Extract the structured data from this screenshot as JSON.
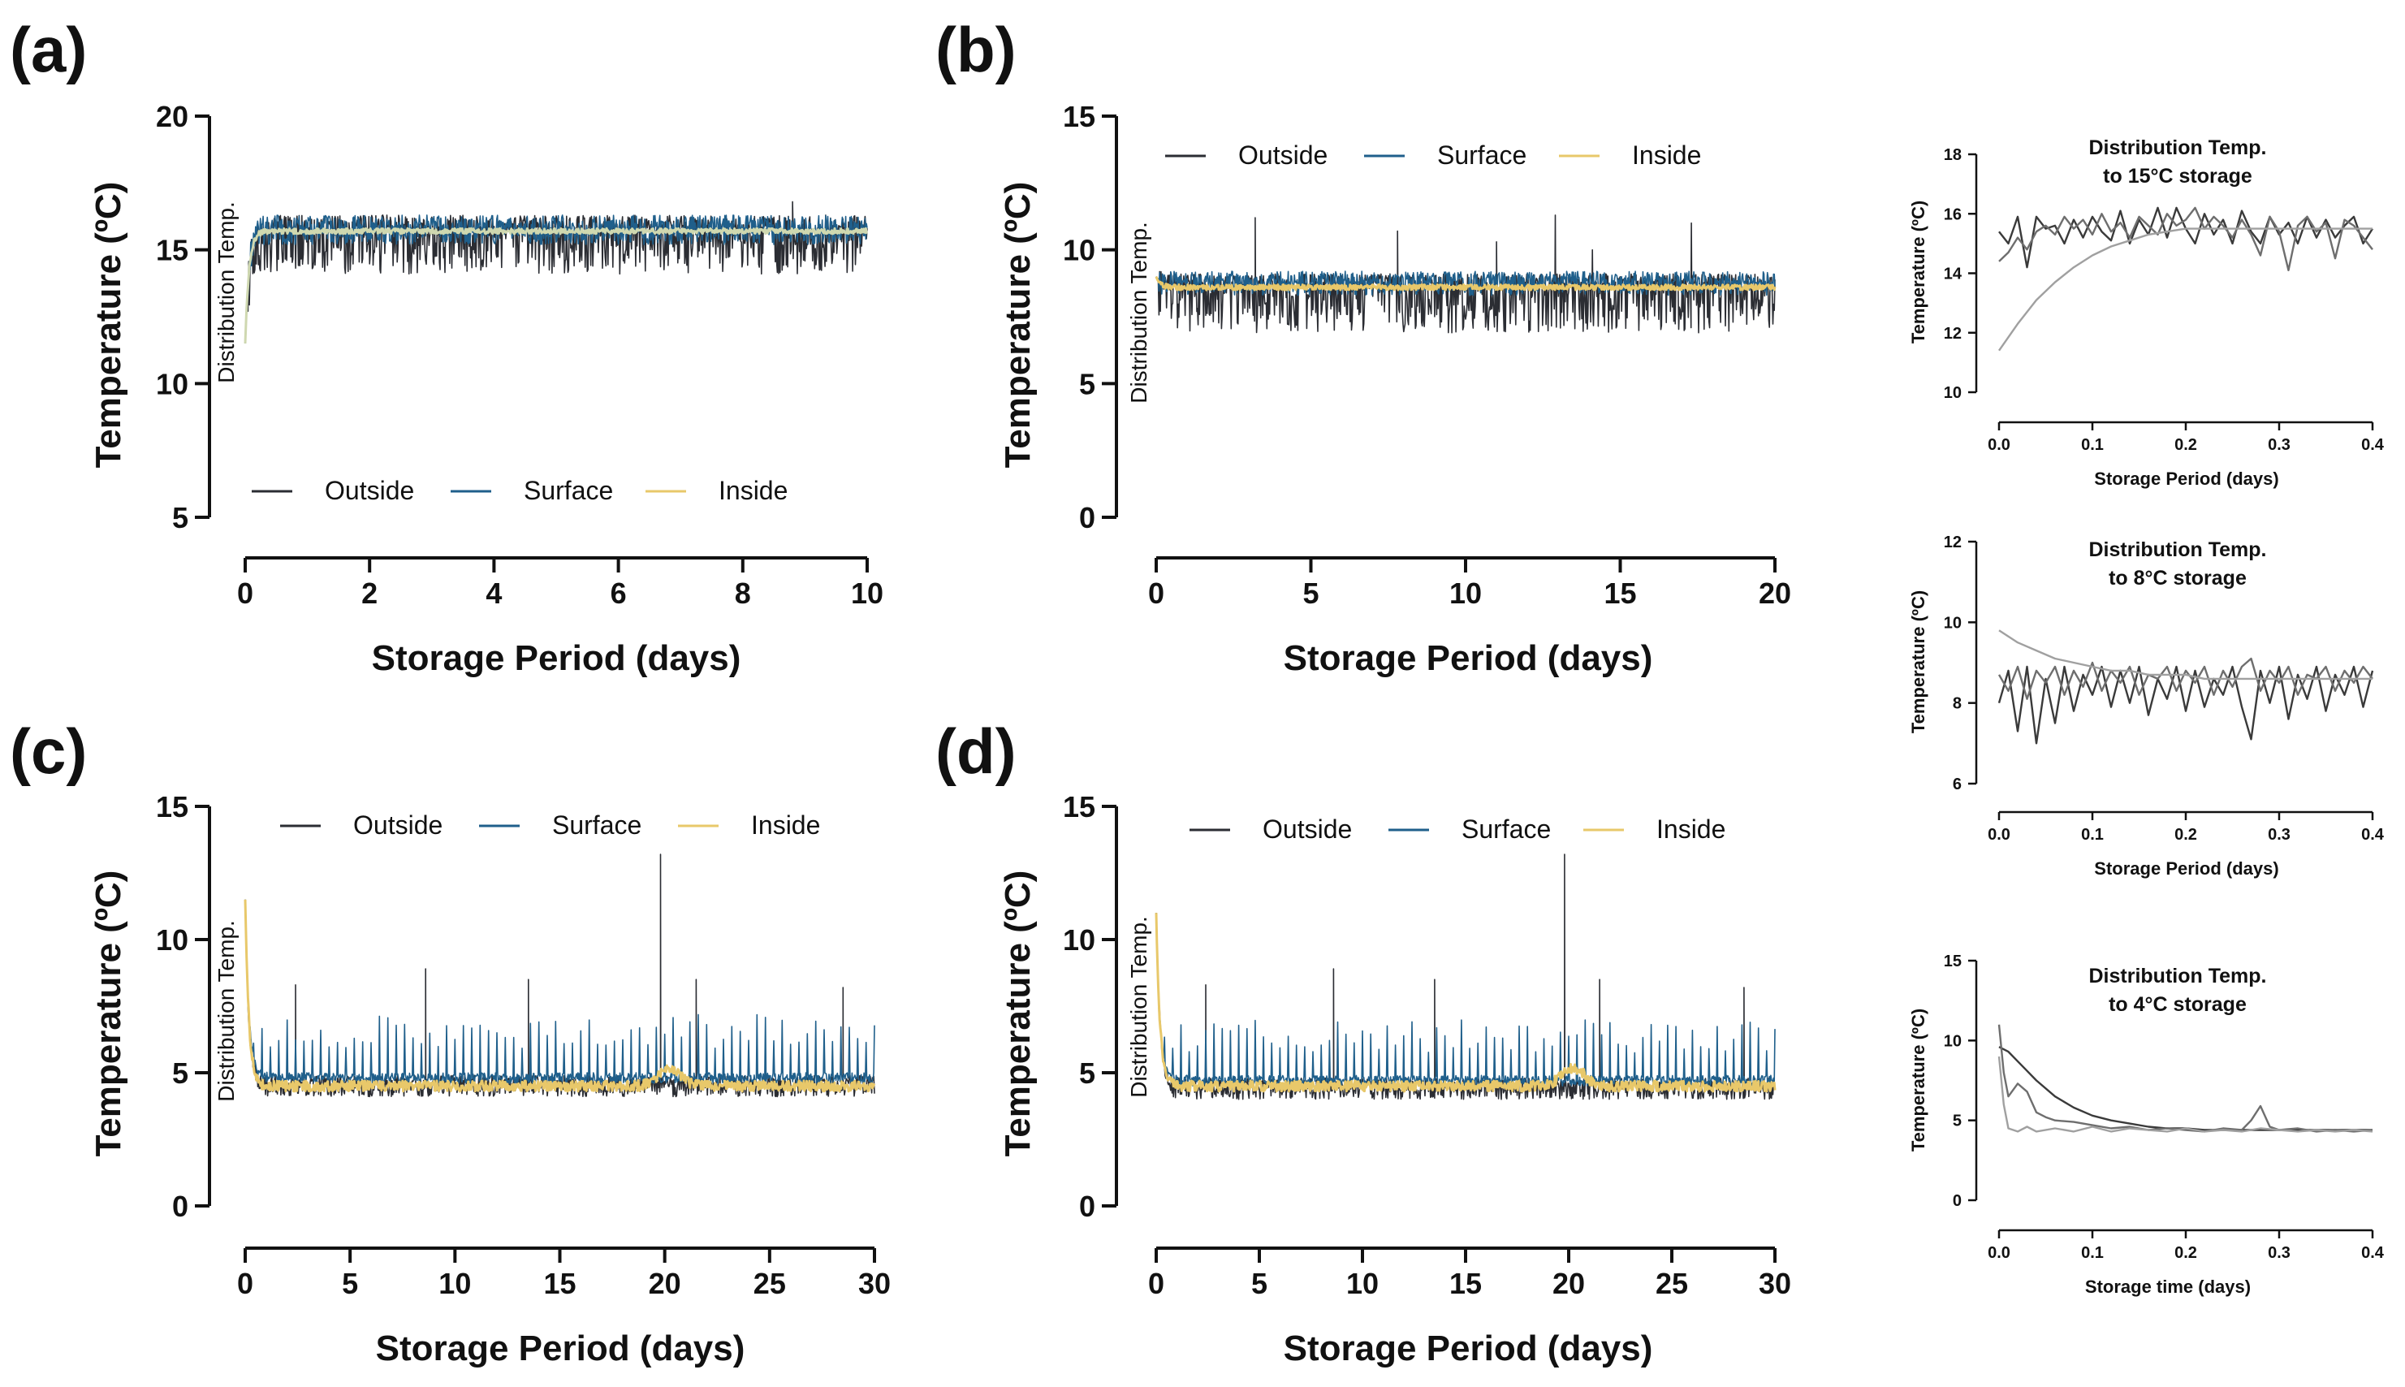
{
  "figure": {
    "panels": [
      {
        "id": "a",
        "label": "(a)",
        "xlabel": "Storage Period (days)",
        "ylabel": "Temperature (ºC)",
        "annotation": "Distribution Temp.",
        "legend": [
          "Outside",
          "Surface",
          "Inside"
        ]
      },
      {
        "id": "b",
        "label": "(b)",
        "xlabel": "Storage Period (days)",
        "ylabel": "Temperature (ºC)",
        "annotation": "Distribution Temp.",
        "legend": [
          "Outside",
          "Surface",
          "Inside"
        ]
      },
      {
        "id": "c",
        "label": "(c)",
        "xlabel": "Storage Period (days)",
        "ylabel": "Temperature (ºC)",
        "annotation": "Distribution Temp.",
        "legend": [
          "Outside",
          "Surface",
          "Inside"
        ]
      },
      {
        "id": "d",
        "label": "(d)",
        "xlabel": "Storage Period (days)",
        "ylabel": "Temperature (ºC)",
        "annotation": "Distribution Temp.",
        "legend": [
          "Outside",
          "Surface",
          "Inside"
        ]
      },
      {
        "id": "inset15",
        "title": [
          "Distribution Temp.",
          "to 15°C storage"
        ],
        "xlabel": "Storage Period (days)",
        "ylabel": "Temperature (ºC)"
      },
      {
        "id": "inset8",
        "title": [
          "Distribution Temp.",
          "to 8°C storage"
        ],
        "xlabel": "Storage Period (days)",
        "ylabel": "Temperature (ºC)"
      },
      {
        "id": "inset4",
        "title": [
          "Distribution Temp.",
          "to 4°C storage"
        ],
        "xlabel": "Storage time (days)",
        "ylabel": "Temperature (ºC)"
      }
    ]
  },
  "colors": {
    "outside": "#2b2d33",
    "surface": "#1f5f8b",
    "inside": "#e8c86a",
    "inside_line_a": "#cfd8b0",
    "inset_line_1": "#3a3a3a",
    "inset_line_2": "#6e6e6e",
    "inset_line_3": "#a0a0a0",
    "axis": "#111111"
  },
  "chart_data": [
    {
      "id": "a",
      "type": "line",
      "xlim": [
        0,
        10
      ],
      "ylim": [
        5,
        20
      ],
      "xticks": [
        0,
        2,
        4,
        6,
        8,
        10
      ],
      "yticks": [
        5,
        10,
        15,
        20
      ],
      "legend_position": "bottom",
      "series": [
        {
          "name": "Outside",
          "start": 11.5,
          "plateau": 15.7,
          "noise_low": 1.6,
          "noise_high": 0.6,
          "spikes": [
            [
              8.8,
              16.8
            ]
          ]
        },
        {
          "name": "Surface",
          "start": 11.5,
          "plateau": 15.8,
          "noise_low": 0.6,
          "noise_high": 0.5,
          "spikes": []
        },
        {
          "name": "Inside",
          "start": 11.5,
          "plateau": 15.7,
          "noise_low": 0.1,
          "noise_high": 0.1,
          "spikes": []
        }
      ]
    },
    {
      "id": "b",
      "type": "line",
      "xlim": [
        0,
        20
      ],
      "ylim": [
        0,
        15
      ],
      "xticks": [
        0,
        5,
        10,
        15,
        20
      ],
      "yticks": [
        0,
        5,
        10,
        15
      ],
      "legend_position": "top",
      "series": [
        {
          "name": "Outside",
          "start": 9.0,
          "plateau": 8.7,
          "noise_low": 1.8,
          "noise_high": 0.4,
          "spikes": [
            [
              3.2,
              11.2
            ],
            [
              7.8,
              10.7
            ],
            [
              11.0,
              10.3
            ],
            [
              12.9,
              11.3
            ],
            [
              17.3,
              11.0
            ],
            [
              14.1,
              10.0
            ]
          ]
        },
        {
          "name": "Surface",
          "start": 9.0,
          "plateau": 8.8,
          "noise_low": 0.5,
          "noise_high": 0.4,
          "spikes": []
        },
        {
          "name": "Inside",
          "start": 9.0,
          "plateau": 8.6,
          "noise_low": 0.1,
          "noise_high": 0.1,
          "spikes": []
        }
      ]
    },
    {
      "id": "c",
      "type": "line",
      "xlim": [
        0,
        30
      ],
      "ylim": [
        0,
        15
      ],
      "xticks": [
        0,
        5,
        10,
        15,
        20,
        25,
        30
      ],
      "yticks": [
        0,
        5,
        10,
        15
      ],
      "legend_position": "top",
      "series": [
        {
          "name": "Outside",
          "start": 11.5,
          "plateau": 4.6,
          "noise_low": 0.5,
          "noise_high": 0.3,
          "spikes": [
            [
              19.8,
              13.2
            ],
            [
              8.6,
              8.9
            ],
            [
              13.5,
              8.5
            ],
            [
              2.4,
              8.3
            ],
            [
              28.5,
              8.2
            ],
            [
              21.5,
              8.5
            ]
          ]
        },
        {
          "name": "Surface",
          "start": 11.5,
          "plateau": 4.8,
          "noise_low": 0.2,
          "noise_high": 0.2,
          "periodic_spike_max": 7.2,
          "periodic_spike_step": 0.6
        },
        {
          "name": "Inside",
          "start": 11.5,
          "plateau": 4.5,
          "noise_low": 0.2,
          "noise_high": 0.2,
          "bump": [
            20.2,
            5.1
          ]
        }
      ]
    },
    {
      "id": "d",
      "type": "line",
      "xlim": [
        0,
        30
      ],
      "ylim": [
        0,
        15
      ],
      "xticks": [
        0,
        5,
        10,
        15,
        20,
        25,
        30
      ],
      "yticks": [
        0,
        5,
        10,
        15
      ],
      "legend_position": "top",
      "series": [
        {
          "name": "Outside",
          "start": 11.0,
          "plateau": 4.5,
          "noise_low": 0.5,
          "noise_high": 0.3,
          "spikes": [
            [
              19.8,
              13.2
            ],
            [
              8.6,
              8.9
            ],
            [
              13.5,
              8.5
            ],
            [
              2.4,
              8.3
            ],
            [
              28.5,
              8.2
            ],
            [
              21.5,
              8.5
            ]
          ]
        },
        {
          "name": "Surface",
          "start": 11.0,
          "plateau": 4.7,
          "noise_low": 0.2,
          "noise_high": 0.2,
          "periodic_spike_max": 7.0,
          "periodic_spike_step": 0.6
        },
        {
          "name": "Inside",
          "start": 11.0,
          "plateau": 4.5,
          "noise_low": 0.2,
          "noise_high": 0.2,
          "bump": [
            20.2,
            5.2
          ]
        }
      ]
    },
    {
      "id": "inset15",
      "type": "line",
      "xlim": [
        0,
        0.4
      ],
      "ylim": [
        10,
        18
      ],
      "xticks": [
        0.0,
        0.1,
        0.2,
        0.3,
        0.4
      ],
      "yticks": [
        10,
        12,
        14,
        16,
        18
      ],
      "series": [
        {
          "x": [
            0.0,
            0.01,
            0.02,
            0.03,
            0.04,
            0.05,
            0.06,
            0.07,
            0.08,
            0.09,
            0.1,
            0.11,
            0.12,
            0.13,
            0.14,
            0.15,
            0.16,
            0.17,
            0.18,
            0.19,
            0.2,
            0.21,
            0.22,
            0.23,
            0.24,
            0.25,
            0.26,
            0.27,
            0.28,
            0.29,
            0.3,
            0.31,
            0.32,
            0.33,
            0.34,
            0.35,
            0.36,
            0.37,
            0.38,
            0.39,
            0.4
          ],
          "y": [
            15.4,
            15.0,
            15.9,
            14.2,
            15.9,
            15.5,
            15.6,
            15.0,
            15.8,
            15.2,
            15.9,
            15.4,
            15.1,
            16.1,
            15.0,
            15.8,
            15.3,
            16.2,
            15.2,
            16.2,
            15.5,
            15.0,
            16.0,
            15.3,
            15.8,
            15.0,
            16.1,
            15.4,
            15.0,
            15.9,
            15.3,
            15.7,
            15.0,
            15.9,
            15.2,
            15.8,
            15.2,
            15.6,
            15.9,
            15.0,
            15.5
          ]
        },
        {
          "x": [
            0.0,
            0.01,
            0.02,
            0.03,
            0.04,
            0.05,
            0.06,
            0.07,
            0.08,
            0.09,
            0.1,
            0.11,
            0.12,
            0.13,
            0.14,
            0.15,
            0.16,
            0.17,
            0.18,
            0.19,
            0.2,
            0.21,
            0.22,
            0.23,
            0.24,
            0.25,
            0.26,
            0.27,
            0.28,
            0.29,
            0.3,
            0.31,
            0.32,
            0.33,
            0.34,
            0.35,
            0.36,
            0.37,
            0.38,
            0.39,
            0.4
          ],
          "y": [
            14.4,
            14.7,
            15.2,
            14.8,
            15.4,
            15.6,
            15.3,
            15.9,
            15.5,
            15.8,
            15.3,
            16.0,
            15.4,
            15.7,
            15.2,
            15.9,
            15.6,
            15.3,
            16.0,
            15.6,
            15.8,
            16.2,
            15.5,
            15.9,
            15.6,
            15.2,
            15.8,
            15.3,
            14.6,
            15.9,
            15.4,
            14.1,
            15.6,
            15.9,
            15.4,
            15.7,
            14.5,
            15.8,
            15.6,
            15.2,
            14.8
          ]
        },
        {
          "x": [
            0.0,
            0.02,
            0.04,
            0.06,
            0.08,
            0.1,
            0.12,
            0.14,
            0.16,
            0.18,
            0.2,
            0.22,
            0.24,
            0.26,
            0.28,
            0.3,
            0.32,
            0.34,
            0.36,
            0.38,
            0.4
          ],
          "y": [
            11.4,
            12.3,
            13.1,
            13.7,
            14.2,
            14.6,
            14.9,
            15.1,
            15.3,
            15.4,
            15.5,
            15.5,
            15.5,
            15.5,
            15.5,
            15.5,
            15.5,
            15.5,
            15.5,
            15.5,
            15.5
          ]
        }
      ]
    },
    {
      "id": "inset8",
      "type": "line",
      "xlim": [
        0,
        0.4
      ],
      "ylim": [
        6,
        12
      ],
      "xticks": [
        0.0,
        0.1,
        0.2,
        0.3,
        0.4
      ],
      "yticks": [
        6,
        8,
        10,
        12
      ],
      "series": [
        {
          "x": [
            0.0,
            0.01,
            0.02,
            0.03,
            0.04,
            0.05,
            0.06,
            0.07,
            0.08,
            0.09,
            0.1,
            0.11,
            0.12,
            0.13,
            0.14,
            0.15,
            0.16,
            0.17,
            0.18,
            0.19,
            0.2,
            0.21,
            0.22,
            0.23,
            0.24,
            0.25,
            0.26,
            0.27,
            0.28,
            0.29,
            0.3,
            0.31,
            0.32,
            0.33,
            0.34,
            0.35,
            0.36,
            0.37,
            0.38,
            0.39,
            0.4
          ],
          "y": [
            8.0,
            8.8,
            7.3,
            8.9,
            7.0,
            8.6,
            7.5,
            8.9,
            7.8,
            8.7,
            8.2,
            8.9,
            7.9,
            8.8,
            8.0,
            8.9,
            7.7,
            8.6,
            8.1,
            8.9,
            7.8,
            8.8,
            7.9,
            8.6,
            8.2,
            8.9,
            7.9,
            7.1,
            8.8,
            8.0,
            8.9,
            7.6,
            8.7,
            8.1,
            8.9,
            7.8,
            8.7,
            8.2,
            8.9,
            7.9,
            8.8
          ]
        },
        {
          "x": [
            0.0,
            0.01,
            0.02,
            0.03,
            0.04,
            0.05,
            0.06,
            0.07,
            0.08,
            0.09,
            0.1,
            0.11,
            0.12,
            0.13,
            0.14,
            0.15,
            0.16,
            0.17,
            0.18,
            0.19,
            0.2,
            0.21,
            0.22,
            0.23,
            0.24,
            0.25,
            0.26,
            0.27,
            0.28,
            0.29,
            0.3,
            0.31,
            0.32,
            0.33,
            0.34,
            0.35,
            0.36,
            0.37,
            0.38,
            0.39,
            0.4
          ],
          "y": [
            8.7,
            8.3,
            8.9,
            8.1,
            8.8,
            8.5,
            8.9,
            8.2,
            8.8,
            8.4,
            9.0,
            8.3,
            8.8,
            8.5,
            8.9,
            8.2,
            8.7,
            8.6,
            8.9,
            8.3,
            8.8,
            8.5,
            8.9,
            8.2,
            8.8,
            8.4,
            8.9,
            9.1,
            8.3,
            8.8,
            8.5,
            8.9,
            8.2,
            8.7,
            8.6,
            8.9,
            8.3,
            8.8,
            8.5,
            8.9,
            8.6
          ]
        },
        {
          "x": [
            0.0,
            0.02,
            0.04,
            0.06,
            0.08,
            0.1,
            0.12,
            0.14,
            0.16,
            0.18,
            0.2,
            0.22,
            0.24,
            0.26,
            0.28,
            0.3,
            0.32,
            0.34,
            0.36,
            0.38,
            0.4
          ],
          "y": [
            9.8,
            9.5,
            9.3,
            9.1,
            9.0,
            8.9,
            8.8,
            8.8,
            8.7,
            8.7,
            8.7,
            8.6,
            8.6,
            8.6,
            8.6,
            8.6,
            8.6,
            8.6,
            8.6,
            8.6,
            8.6
          ]
        }
      ]
    },
    {
      "id": "inset4",
      "type": "line",
      "xlim": [
        0,
        0.4
      ],
      "ylim": [
        0,
        15
      ],
      "xticks": [
        0.0,
        0.1,
        0.2,
        0.3,
        0.4
      ],
      "yticks": [
        0,
        5,
        10,
        15
      ],
      "series": [
        {
          "x": [
            0.0,
            0.01,
            0.02,
            0.03,
            0.04,
            0.06,
            0.08,
            0.1,
            0.12,
            0.14,
            0.16,
            0.18,
            0.2,
            0.22,
            0.24,
            0.26,
            0.28,
            0.3,
            0.32,
            0.34,
            0.36,
            0.38,
            0.4
          ],
          "y": [
            9.6,
            9.3,
            8.7,
            8.1,
            7.5,
            6.5,
            5.8,
            5.3,
            5.0,
            4.8,
            4.6,
            4.5,
            4.5,
            4.4,
            4.4,
            4.4,
            4.4,
            4.4,
            4.4,
            4.4,
            4.4,
            4.4,
            4.4
          ]
        },
        {
          "x": [
            0.0,
            0.005,
            0.01,
            0.02,
            0.03,
            0.04,
            0.05,
            0.06,
            0.08,
            0.1,
            0.12,
            0.14,
            0.16,
            0.18,
            0.2,
            0.22,
            0.24,
            0.26,
            0.27,
            0.28,
            0.29,
            0.3,
            0.32,
            0.34,
            0.36,
            0.38,
            0.4
          ],
          "y": [
            11.0,
            8.0,
            6.5,
            7.3,
            6.8,
            5.5,
            5.2,
            5.0,
            4.9,
            4.7,
            4.5,
            4.6,
            4.4,
            4.5,
            4.4,
            4.3,
            4.5,
            4.4,
            5.0,
            5.9,
            4.6,
            4.4,
            4.5,
            4.3,
            4.4,
            4.3,
            4.4
          ]
        },
        {
          "x": [
            0.0,
            0.005,
            0.01,
            0.02,
            0.03,
            0.04,
            0.06,
            0.08,
            0.1,
            0.12,
            0.14,
            0.16,
            0.18,
            0.2,
            0.22,
            0.24,
            0.26,
            0.28,
            0.3,
            0.32,
            0.34,
            0.36,
            0.38,
            0.4
          ],
          "y": [
            9.0,
            6.0,
            4.5,
            4.3,
            4.6,
            4.3,
            4.5,
            4.3,
            4.6,
            4.3,
            4.5,
            4.4,
            4.3,
            4.5,
            4.3,
            4.4,
            4.3,
            4.5,
            4.4,
            4.3,
            4.4,
            4.3,
            4.4,
            4.3
          ]
        }
      ]
    }
  ]
}
